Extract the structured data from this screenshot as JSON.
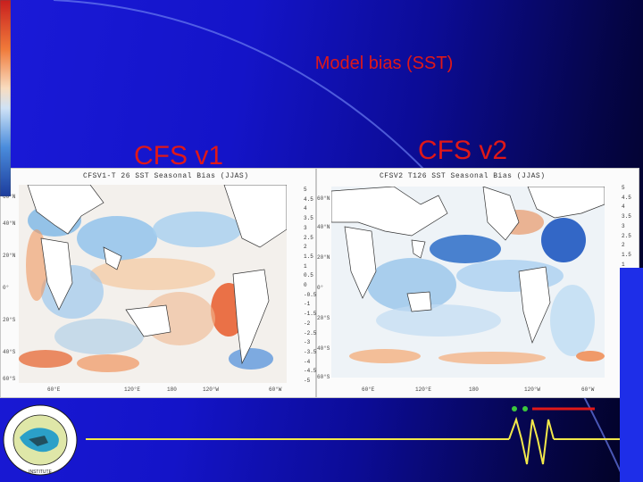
{
  "slide": {
    "title": "Model bias (SST)",
    "left_label": "CFS v1",
    "right_label": "CFS v2"
  },
  "panels": [
    {
      "id": "v1",
      "title": "CFSV1-T 26 SST Seasonal Bias (JJAS)",
      "lat_labels": [
        "60°N",
        "40°N",
        "20°N",
        "0°",
        "20°S",
        "40°S",
        "60°S"
      ],
      "lon_labels": [
        "60°E",
        "120°E",
        "180",
        "120°W",
        "60°W"
      ],
      "colorbar_ticks": [
        "5",
        "4.5",
        "4",
        "3.5",
        "3",
        "2.5",
        "2",
        "1.5",
        "1",
        "0.5",
        "0",
        "-0.5",
        "-1",
        "-1.5",
        "-2",
        "-2.5",
        "-3",
        "-3.5",
        "-4",
        "-4.5",
        "-5"
      ]
    },
    {
      "id": "v2",
      "title": "CFSV2 T126 SST Seasonal Bias (JJAS)",
      "lat_labels": [
        "60°N",
        "40°N",
        "20°N",
        "0°",
        "20°S",
        "40°S",
        "60°S"
      ],
      "lon_labels": [
        "60°E",
        "120°E",
        "180",
        "120°W",
        "60°W"
      ],
      "colorbar_ticks": [
        "5",
        "4.5",
        "4",
        "3.5",
        "3",
        "2.5",
        "2",
        "1.5",
        "1",
        "0.5",
        "0",
        "-0.5",
        "-1",
        "-1.5",
        "-2",
        "-2.5",
        "-3",
        "-3.5",
        "-4",
        "-4.5",
        "-5"
      ]
    }
  ],
  "colors": {
    "title_red": "#e01818",
    "warm_bias": "#e8884a",
    "cool_bias": "#4a88d8",
    "deco_yellow": "#f2e84a",
    "deco_red": "#e01818",
    "deco_green": "#3cc83c"
  },
  "icons": {
    "logo": "institute-emblem-icon",
    "waveform": "seismograph-icon"
  }
}
